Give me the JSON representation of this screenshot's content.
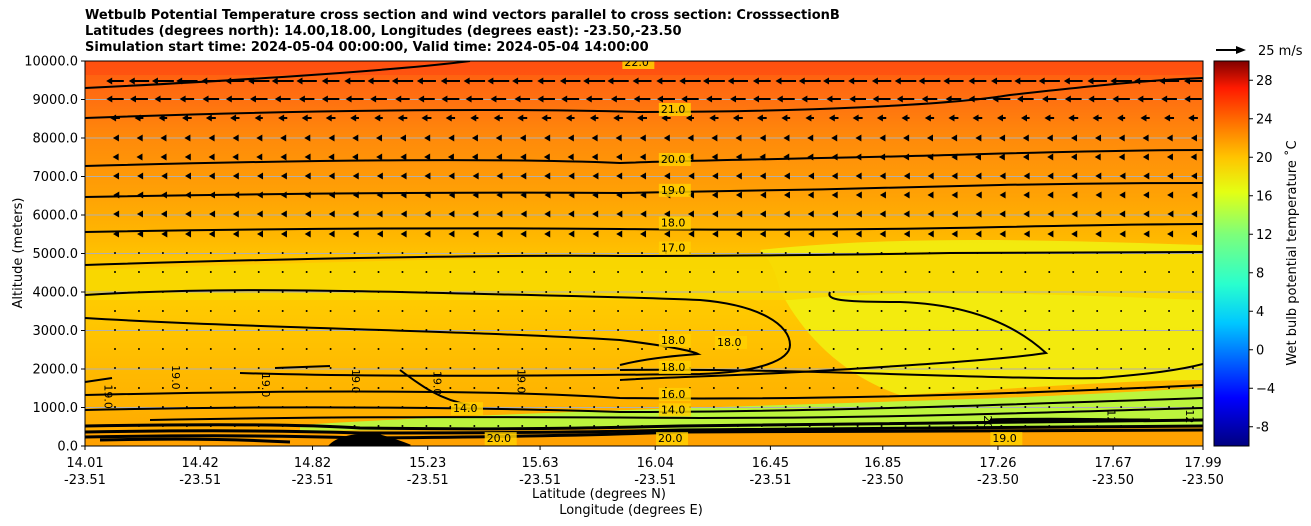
{
  "chart_data": {
    "type": "filled-contour",
    "title_lines": [
      "Wetbulb Potential Temperature cross section and wind vectors parallel to cross section: CrosssectionB",
      "Latitudes (degrees north): 14.00,18.00, Longitudes (degrees east): -23.50,-23.50",
      "Simulation start time: 2024-05-04 00:00:00, Valid time: 2024-05-04 14:00:00"
    ],
    "xlabel": "Latitude (degrees N)",
    "xlabel2": "Longitude (degrees E)",
    "ylabel": "Altitude (meters)",
    "x_ticks": [
      {
        "lat": "14.01",
        "lon": "-23.51"
      },
      {
        "lat": "14.42",
        "lon": "-23.51"
      },
      {
        "lat": "14.82",
        "lon": "-23.51"
      },
      {
        "lat": "15.23",
        "lon": "-23.51"
      },
      {
        "lat": "15.63",
        "lon": "-23.51"
      },
      {
        "lat": "16.04",
        "lon": "-23.51"
      },
      {
        "lat": "16.45",
        "lon": "-23.51"
      },
      {
        "lat": "16.85",
        "lon": "-23.50"
      },
      {
        "lat": "17.26",
        "lon": "-23.50"
      },
      {
        "lat": "17.67",
        "lon": "-23.50"
      },
      {
        "lat": "17.99",
        "lon": "-23.50"
      }
    ],
    "x_range": [
      14.01,
      17.99
    ],
    "ylim": [
      0,
      10000
    ],
    "y_ticks": [
      "0.0",
      "1000.0",
      "2000.0",
      "3000.0",
      "4000.0",
      "5000.0",
      "6000.0",
      "7000.0",
      "8000.0",
      "9000.0",
      "10000.0"
    ],
    "grid": true,
    "colorbar": {
      "label": "Wet bulb potential temperature ˚C",
      "range": [
        -10,
        30
      ],
      "ticks": [
        "-8",
        "−4",
        "0",
        "4",
        "8",
        "12",
        "16",
        "20",
        "24",
        "28"
      ]
    },
    "wind_key": {
      "label": "25 m/s"
    },
    "contour_labels": [
      {
        "text": "22.0",
        "lat": 15.93,
        "alt": 9870
      },
      {
        "text": "21.0",
        "lat": 16.06,
        "alt": 8650
      },
      {
        "text": "20.0",
        "lat": 16.06,
        "alt": 7350
      },
      {
        "text": "19.0",
        "lat": 16.06,
        "alt": 6550
      },
      {
        "text": "18.0",
        "lat": 16.06,
        "alt": 5700
      },
      {
        "text": "17.0",
        "lat": 16.06,
        "alt": 5050
      },
      {
        "text": "18.0",
        "lat": 16.06,
        "alt": 2650
      },
      {
        "text": "18.0",
        "lat": 16.26,
        "alt": 2600
      },
      {
        "text": "18.0",
        "lat": 16.06,
        "alt": 1950
      },
      {
        "text": "16.0",
        "lat": 16.06,
        "alt": 1250
      },
      {
        "text": "14.0",
        "lat": 16.06,
        "alt": 850
      },
      {
        "text": "14.0",
        "lat": 15.32,
        "alt": 880
      },
      {
        "text": "19.0",
        "lat": 14.32,
        "alt": 2100
      },
      {
        "text": "19.0",
        "lat": 14.64,
        "alt": 1900
      },
      {
        "text": "19.0",
        "lat": 14.96,
        "alt": 2000
      },
      {
        "text": "19.0",
        "lat": 15.25,
        "alt": 1950
      },
      {
        "text": "19.0",
        "lat": 15.55,
        "alt": 2000
      },
      {
        "text": "19.0",
        "lat": 14.08,
        "alt": 1600
      },
      {
        "text": "20.0",
        "lat": 15.44,
        "alt": 100
      },
      {
        "text": "20.0",
        "lat": 16.05,
        "alt": 100
      },
      {
        "text": "19.0",
        "lat": 17.24,
        "alt": 100
      },
      {
        "text": "12",
        "lat": 17.65,
        "alt": 950
      },
      {
        "text": "12",
        "lat": 17.93,
        "alt": 950
      },
      {
        "text": "20",
        "lat": 17.21,
        "alt": 800
      }
    ]
  }
}
